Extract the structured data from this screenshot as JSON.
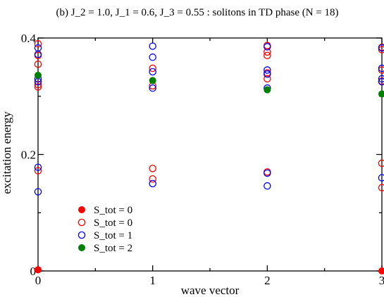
{
  "chart_data": {
    "type": "scatter",
    "title": "(b) J_2 = 1.0, J_1 = 0.6, J_3 = 0.55 : solitons in TD phase (N = 18)",
    "xlabel": "wave vector",
    "ylabel": "excitation energy",
    "xlim": [
      0,
      3
    ],
    "ylim": [
      0,
      0.4
    ],
    "x_ticks": [
      {
        "value": 0,
        "label": "0"
      },
      {
        "value": 1,
        "label": "1"
      },
      {
        "value": 2,
        "label": "2"
      },
      {
        "value": 3,
        "label": "3"
      }
    ],
    "y_ticks": [
      {
        "value": 0,
        "label": "0"
      },
      {
        "value": 0.2,
        "label": "0.2"
      },
      {
        "value": 0.4,
        "label": "0.4"
      }
    ],
    "grid": false,
    "legend_position": "bottom-left",
    "series": [
      {
        "name": "S_tot = 0",
        "marker": "filled-circle",
        "color": "#ff0000",
        "points": [
          [
            0,
            0.002
          ],
          [
            3,
            0.0
          ]
        ]
      },
      {
        "name": "S_tot = 0",
        "marker": "open-circle",
        "color": "#ff0000",
        "points": [
          [
            0,
            0.172
          ],
          [
            0,
            0.316
          ],
          [
            0,
            0.32
          ],
          [
            0,
            0.355
          ],
          [
            0,
            0.37
          ],
          [
            0,
            0.39
          ],
          [
            1,
            0.158
          ],
          [
            1,
            0.176
          ],
          [
            1,
            0.318
          ],
          [
            1,
            0.348
          ],
          [
            2,
            0.17
          ],
          [
            2,
            0.33
          ],
          [
            2,
            0.34
          ],
          [
            2,
            0.37
          ],
          [
            2,
            0.376
          ],
          [
            2,
            0.387
          ],
          [
            3,
            0.143
          ],
          [
            3,
            0.185
          ],
          [
            3,
            0.326
          ],
          [
            3,
            0.345
          ],
          [
            3,
            0.38
          ],
          [
            3,
            0.384
          ]
        ]
      },
      {
        "name": "S_tot = 1",
        "marker": "open-circle",
        "color": "#0000ff",
        "points": [
          [
            0,
            0.136
          ],
          [
            0,
            0.178
          ],
          [
            0,
            0.325
          ],
          [
            0,
            0.33
          ],
          [
            0,
            0.372
          ],
          [
            0,
            0.383
          ],
          [
            1,
            0.15
          ],
          [
            1,
            0.314
          ],
          [
            1,
            0.342
          ],
          [
            1,
            0.367
          ],
          [
            1,
            0.386
          ],
          [
            2,
            0.146
          ],
          [
            2,
            0.168
          ],
          [
            2,
            0.314
          ],
          [
            2,
            0.338
          ],
          [
            2,
            0.345
          ],
          [
            2,
            0.385
          ],
          [
            3,
            0.16
          ],
          [
            3,
            0.325
          ],
          [
            3,
            0.33
          ],
          [
            3,
            0.348
          ],
          [
            3,
            0.383
          ]
        ]
      },
      {
        "name": "S_tot = 2",
        "marker": "filled-circle",
        "color": "#008000",
        "points": [
          [
            0,
            0.336
          ],
          [
            1,
            0.327
          ],
          [
            2,
            0.311
          ],
          [
            3,
            0.304
          ]
        ]
      }
    ]
  }
}
